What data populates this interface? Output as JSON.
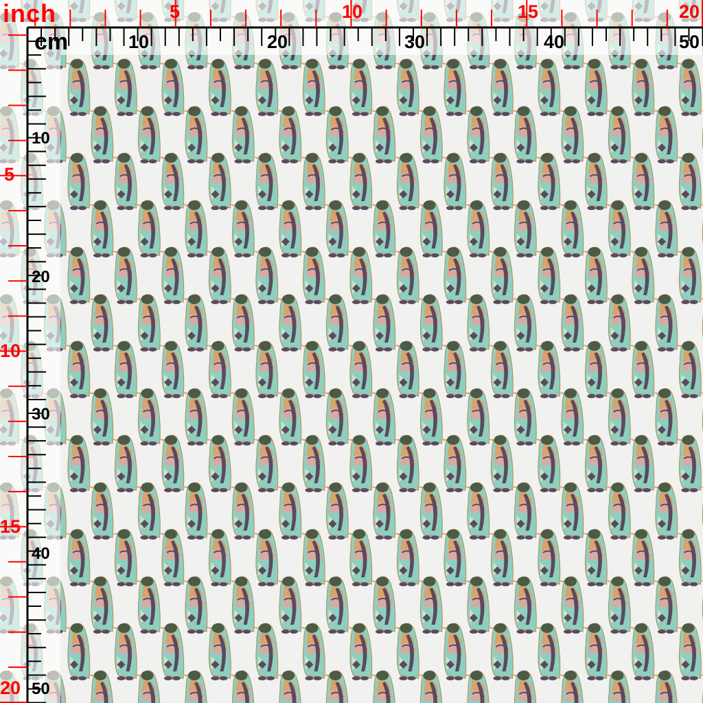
{
  "rulers": {
    "inch_unit": "inch",
    "cm_unit": "cm",
    "inch_color": "#ff0000",
    "cm_color": "#000000",
    "top_inch_labels": [
      "5",
      "10",
      "15",
      "20"
    ],
    "top_cm_labels": [
      "10",
      "20",
      "30",
      "40",
      "50"
    ],
    "left_inch_labels": [
      "5",
      "10",
      "15",
      "20"
    ],
    "left_cm_labels": [
      "10",
      "20",
      "30",
      "40",
      "50"
    ]
  },
  "fabric": {
    "motif": "penguin-icon",
    "background_color": "#f1f1f0",
    "palette": [
      "#8fcfbf",
      "#d9a36a",
      "#5a4a5e",
      "#e9a39a",
      "#cfe3c8",
      "#4d5a45"
    ]
  }
}
